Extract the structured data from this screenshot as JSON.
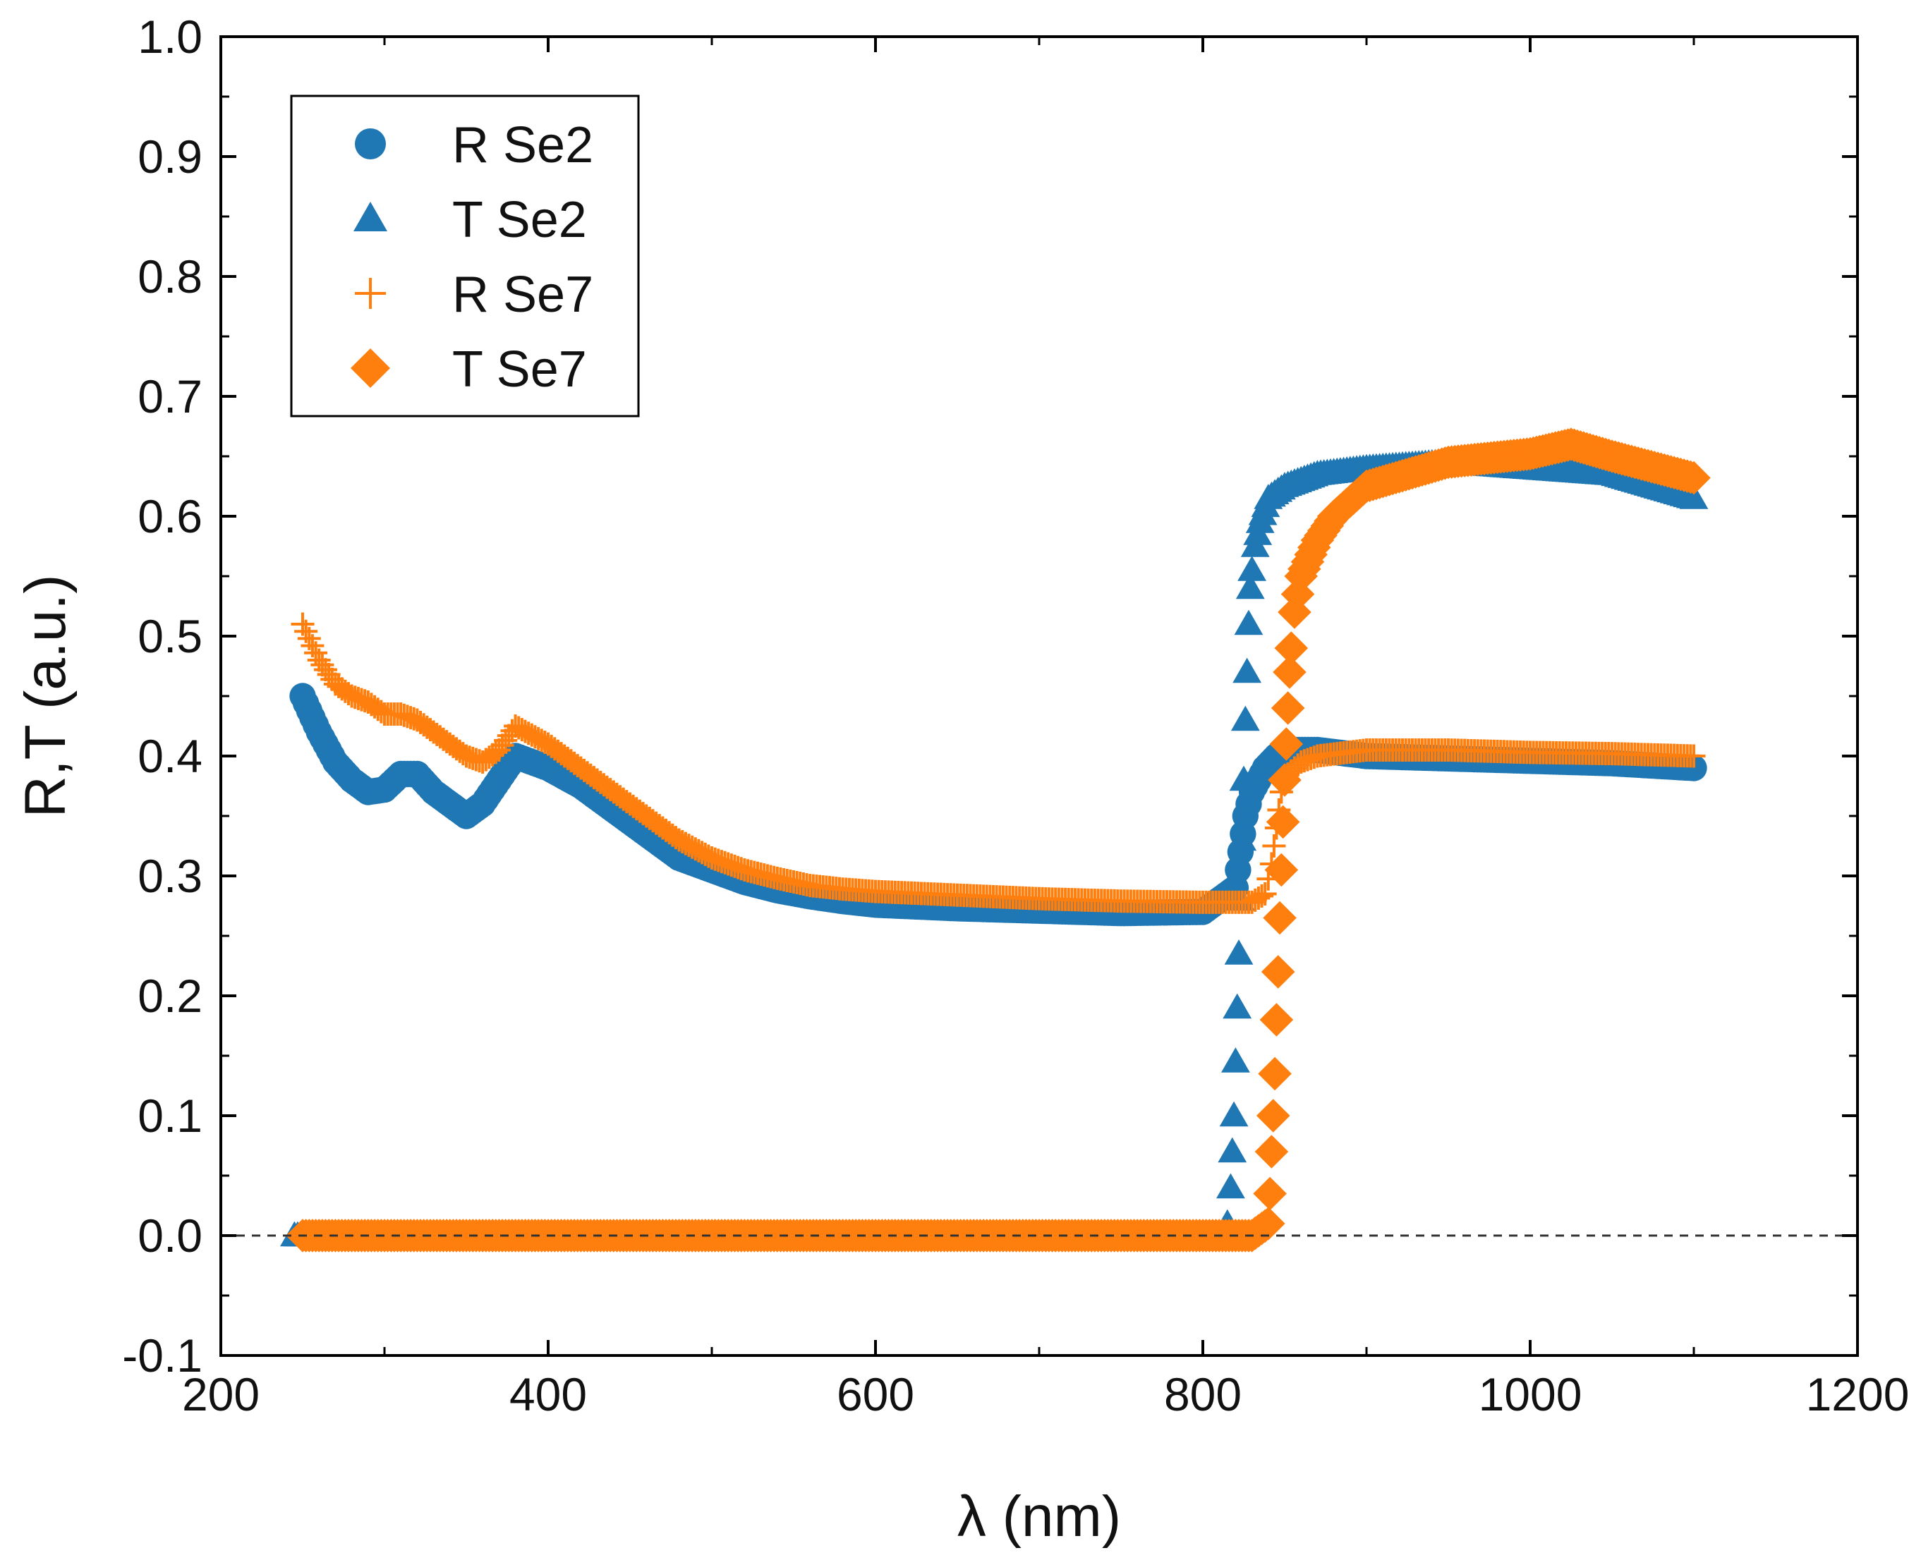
{
  "chart_data": {
    "type": "scatter",
    "title": "",
    "xlabel": "λ (nm)",
    "ylabel": "R,T (a.u.)",
    "xlim": [
      200,
      1200
    ],
    "ylim": [
      -0.1,
      1.0
    ],
    "x_ticks": [
      200,
      400,
      600,
      800,
      1000,
      1200
    ],
    "x_tick_labels": [
      "200",
      "400",
      "600",
      "800",
      "1000",
      "1200"
    ],
    "y_ticks": [
      -0.1,
      0.0,
      0.1,
      0.2,
      0.3,
      0.4,
      0.5,
      0.6,
      0.7,
      0.8,
      0.9,
      1.0
    ],
    "y_tick_labels": [
      "-0.1",
      "0.0",
      "0.1",
      "0.2",
      "0.3",
      "0.4",
      "0.5",
      "0.6",
      "0.7",
      "0.8",
      "0.9",
      "1.0"
    ],
    "grid": false,
    "reference_line": {
      "y": 0.0,
      "style": "dashed"
    },
    "legend_position": "top-left",
    "series": [
      {
        "name": "R Se2",
        "marker": "circle",
        "color": "#1f77b4",
        "x": [
          250,
          260,
          270,
          280,
          290,
          300,
          310,
          320,
          330,
          340,
          350,
          360,
          370,
          380,
          400,
          420,
          440,
          460,
          480,
          500,
          520,
          540,
          560,
          580,
          600,
          650,
          700,
          750,
          800,
          820,
          823,
          826,
          830,
          834,
          838,
          845,
          855,
          870,
          900,
          950,
          1000,
          1050,
          1100
        ],
        "values": [
          0.45,
          0.42,
          0.395,
          0.38,
          0.37,
          0.372,
          0.385,
          0.385,
          0.37,
          0.36,
          0.35,
          0.36,
          0.38,
          0.4,
          0.39,
          0.375,
          0.355,
          0.335,
          0.315,
          0.305,
          0.295,
          0.288,
          0.283,
          0.279,
          0.276,
          0.273,
          0.271,
          0.269,
          0.27,
          0.29,
          0.32,
          0.35,
          0.37,
          0.38,
          0.39,
          0.4,
          0.405,
          0.405,
          0.4,
          0.398,
          0.396,
          0.394,
          0.39
        ]
      },
      {
        "name": "T Se2",
        "marker": "triangle",
        "color": "#1f77b4",
        "x": [
          245,
          300,
          400,
          500,
          600,
          700,
          800,
          812,
          815,
          817,
          818,
          819,
          820,
          821,
          822,
          823,
          824,
          825,
          826,
          827,
          828,
          829,
          830,
          832,
          835,
          840,
          850,
          870,
          900,
          950,
          1000,
          1050,
          1100
        ],
        "values": [
          0.0,
          0.0,
          0.0,
          0.0,
          0.0,
          0.0,
          0.0,
          0.0,
          0.01,
          0.04,
          0.07,
          0.1,
          0.145,
          0.19,
          0.235,
          0.28,
          0.33,
          0.38,
          0.43,
          0.47,
          0.51,
          0.54,
          0.555,
          0.575,
          0.595,
          0.615,
          0.625,
          0.635,
          0.64,
          0.645,
          0.64,
          0.635,
          0.615
        ]
      },
      {
        "name": "R Se7",
        "marker": "plus",
        "color": "#ff7f0e",
        "x": [
          250,
          260,
          270,
          280,
          290,
          300,
          310,
          320,
          330,
          340,
          350,
          360,
          370,
          380,
          400,
          420,
          440,
          460,
          480,
          500,
          520,
          540,
          560,
          580,
          600,
          650,
          700,
          750,
          800,
          830,
          838,
          842,
          845,
          848,
          852,
          860,
          870,
          900,
          950,
          1000,
          1050,
          1100
        ],
        "values": [
          0.51,
          0.48,
          0.46,
          0.45,
          0.445,
          0.435,
          0.435,
          0.43,
          0.42,
          0.41,
          0.4,
          0.395,
          0.405,
          0.425,
          0.41,
          0.39,
          0.37,
          0.35,
          0.33,
          0.315,
          0.305,
          0.298,
          0.292,
          0.289,
          0.287,
          0.284,
          0.281,
          0.279,
          0.278,
          0.278,
          0.285,
          0.31,
          0.34,
          0.37,
          0.385,
          0.395,
          0.4,
          0.405,
          0.405,
          0.403,
          0.402,
          0.4
        ]
      },
      {
        "name": "T Se7",
        "marker": "diamond",
        "color": "#ff7f0e",
        "x": [
          250,
          300,
          400,
          500,
          600,
          700,
          800,
          830,
          840,
          841,
          842,
          843,
          844,
          845,
          846,
          847,
          848,
          849,
          850,
          851,
          852,
          853,
          854,
          856,
          860,
          870,
          880,
          900,
          950,
          1000,
          1025,
          1050,
          1100
        ],
        "values": [
          0.0,
          0.0,
          0.0,
          0.0,
          0.0,
          0.0,
          0.0,
          0.0,
          0.01,
          0.035,
          0.07,
          0.1,
          0.135,
          0.18,
          0.22,
          0.265,
          0.305,
          0.345,
          0.38,
          0.41,
          0.44,
          0.47,
          0.49,
          0.52,
          0.55,
          0.58,
          0.6,
          0.625,
          0.645,
          0.652,
          0.66,
          0.65,
          0.632
        ]
      }
    ]
  }
}
